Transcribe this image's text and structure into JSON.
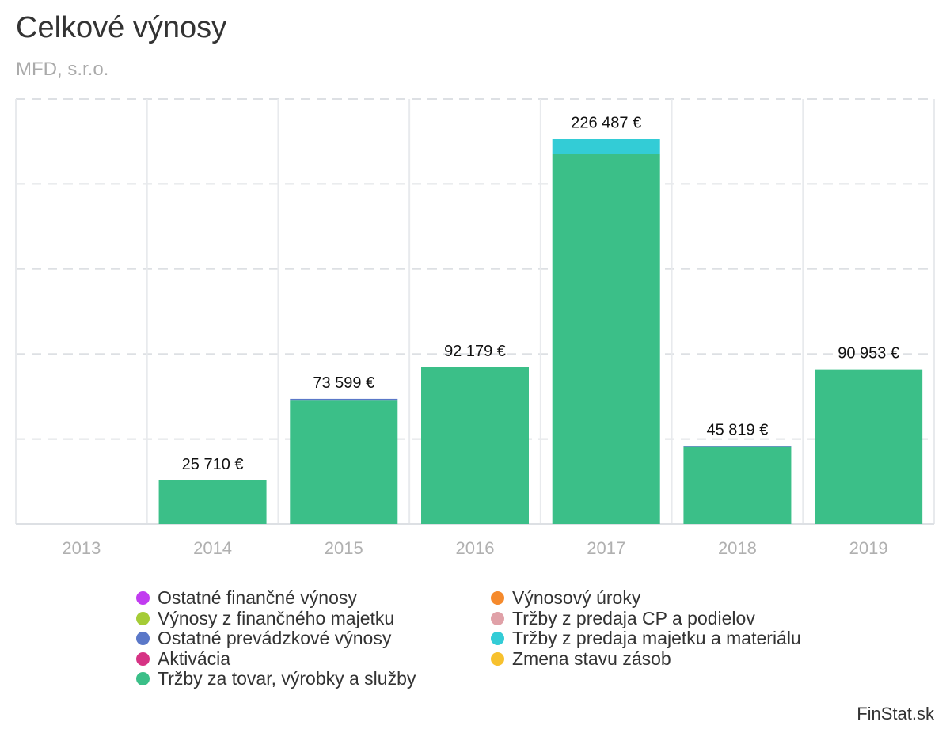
{
  "chart_data": {
    "type": "bar",
    "stacked": true,
    "title": "Celkové výnosy",
    "subtitle": "MFD, s.r.o.",
    "categories": [
      "2013",
      "2014",
      "2015",
      "2016",
      "2017",
      "2018",
      "2019"
    ],
    "totals_labels": [
      "",
      "25 710 €",
      "73 599 €",
      "92 179 €",
      "226 487 €",
      "45 819 €",
      "90 953 €"
    ],
    "ylim": [
      0,
      250000
    ],
    "grid": true,
    "legend_position": "bottom",
    "series": [
      {
        "name": "Ostatné finančné výnosy",
        "color": "#c13cf0",
        "values": [
          0,
          0,
          0,
          0,
          0,
          0,
          0
        ]
      },
      {
        "name": "Výnosový úroky",
        "color": "#f58a2c",
        "values": [
          0,
          0,
          0,
          0,
          0,
          0,
          0
        ]
      },
      {
        "name": "Výnosy z finančného majetku",
        "color": "#a5cc36",
        "values": [
          0,
          0,
          0,
          0,
          0,
          0,
          0
        ]
      },
      {
        "name": "Tržby z predaja CP a podielov",
        "color": "#e0a1a8",
        "values": [
          0,
          0,
          0,
          0,
          0,
          0,
          0
        ]
      },
      {
        "name": "Ostatné prevádzkové výnosy",
        "color": "#5b78c8",
        "values": [
          0,
          0,
          600,
          0,
          0,
          500,
          0
        ]
      },
      {
        "name": "Tržby z predaja majetku a materiálu",
        "color": "#33ccd6",
        "values": [
          0,
          0,
          0,
          0,
          9000,
          0,
          0
        ]
      },
      {
        "name": "Aktivácia",
        "color": "#d63384",
        "values": [
          0,
          0,
          0,
          0,
          0,
          0,
          0
        ]
      },
      {
        "name": "Zmena stavu zásob",
        "color": "#f7c12e",
        "values": [
          0,
          0,
          0,
          0,
          0,
          0,
          0
        ]
      },
      {
        "name": "Tržby za tovar, výrobky a služby",
        "color": "#3bbf88",
        "values": [
          0,
          25710,
          72999,
          92179,
          217487,
          45319,
          90953
        ]
      }
    ],
    "legend_order": [
      0,
      1,
      2,
      3,
      4,
      5,
      6,
      7,
      8
    ],
    "credit": "FinStat.sk"
  }
}
